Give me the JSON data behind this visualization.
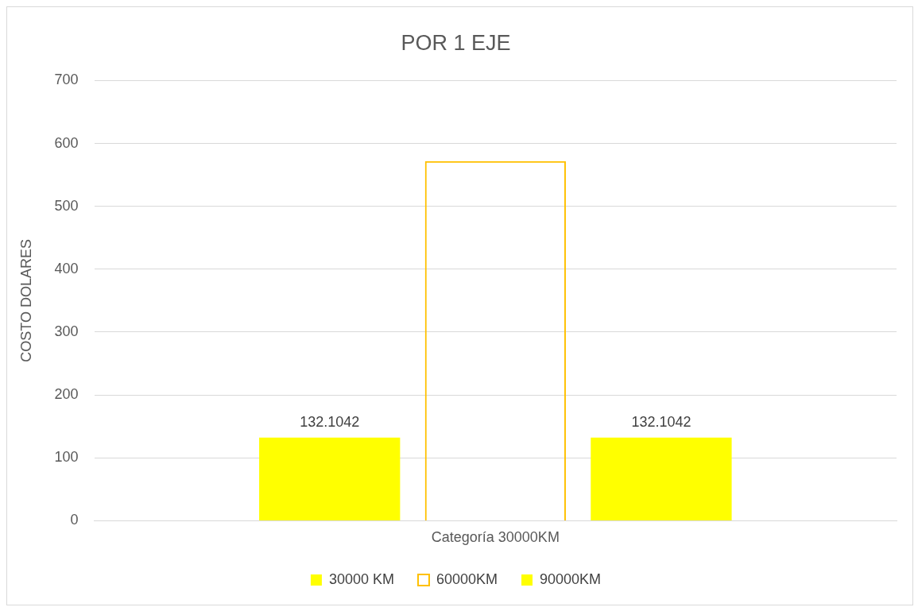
{
  "chart_data": {
    "type": "bar",
    "title": "POR 1 EJE",
    "ylabel": "COSTO DOLARES",
    "categories": [
      "Categoría 30000KM"
    ],
    "series": [
      {
        "name": "30000 KM",
        "color": "#ffff00",
        "values": [
          132.1042
        ],
        "value_labels": [
          "132.1042"
        ]
      },
      {
        "name": "60000KM",
        "color": "#ffc000",
        "values": [
          572
        ]
      },
      {
        "name": "90000KM",
        "color": "#ffff00",
        "values": [
          132.1042
        ],
        "value_labels": [
          "132.1042"
        ]
      }
    ],
    "ylim": [
      0,
      700
    ],
    "yticks": [
      0,
      100,
      200,
      300,
      400,
      500,
      600,
      700
    ],
    "grid": "y",
    "legend": "bottom"
  }
}
